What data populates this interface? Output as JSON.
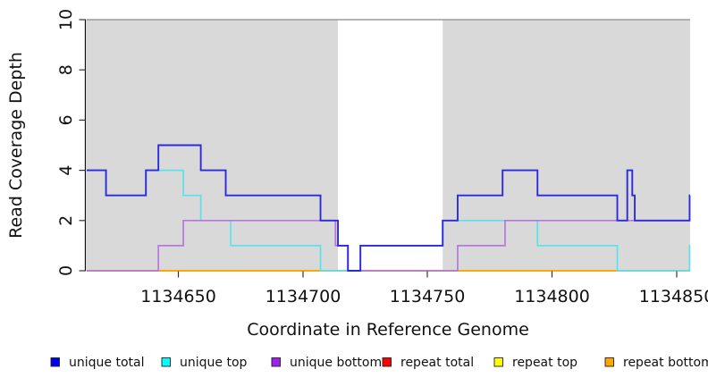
{
  "figure": {
    "background": "#FFFFFF",
    "description": "Step plot of read coverage depth across a reference genome window"
  },
  "chart_data": {
    "type": "line",
    "subtype": "step",
    "title": "",
    "xlabel": "Coordinate in Reference Genome",
    "ylabel": "Read Coverage Depth",
    "xlim": [
      1134613,
      1134856
    ],
    "ylim": [
      0,
      10
    ],
    "grid": false,
    "legend_position": "bottom",
    "plot_background": "#FFFFFF",
    "x_ticks": [
      1134650,
      1134700,
      1134750,
      1134800,
      1134850
    ],
    "x_tick_labels": [
      "1134650",
      "1134700",
      "1134750",
      "1134800",
      "1134850"
    ],
    "y_ticks": [
      0,
      2,
      4,
      6,
      8,
      10
    ],
    "y_tick_labels": [
      "0",
      "2",
      "4",
      "6",
      "8",
      "10"
    ],
    "shaded_regions": [
      {
        "from": 1134613,
        "to": 1134714,
        "color": "#D9D9D9"
      },
      {
        "from": 1134756,
        "to": 1134856,
        "color": "#D9D9D9"
      }
    ],
    "unshaded_gap": {
      "from": 1134714,
      "to": 1134756
    },
    "region_border_color": "#9B9B9B",
    "draw_order": [
      3,
      4,
      5,
      1,
      2,
      0
    ],
    "series": [
      {
        "name": "unique total",
        "swatch": "#0000EE",
        "line": "#2B2BDB",
        "steps": [
          [
            1134613,
            4
          ],
          [
            1134621,
            3
          ],
          [
            1134637,
            4
          ],
          [
            1134642,
            5
          ],
          [
            1134659,
            4
          ],
          [
            1134669,
            3
          ],
          [
            1134707,
            2
          ],
          [
            1134714,
            1
          ],
          [
            1134718,
            0
          ],
          [
            1134723,
            1
          ],
          [
            1134756,
            2
          ],
          [
            1134762,
            3
          ],
          [
            1134780,
            4
          ],
          [
            1134794,
            3
          ],
          [
            1134826,
            2
          ],
          [
            1134830,
            4
          ],
          [
            1134832,
            3
          ],
          [
            1134833,
            2
          ],
          [
            1134855,
            3
          ]
        ]
      },
      {
        "name": "unique top",
        "swatch": "#00FFFF",
        "line": "#5CE1EA",
        "steps": [
          [
            1134613,
            4
          ],
          [
            1134621,
            3
          ],
          [
            1134637,
            4
          ],
          [
            1134652,
            3
          ],
          [
            1134659,
            2
          ],
          [
            1134671,
            1
          ],
          [
            1134707,
            0
          ],
          [
            1134723,
            1
          ],
          [
            1134756,
            2
          ],
          [
            1134794,
            1
          ],
          [
            1134826,
            0
          ],
          [
            1134855,
            1
          ]
        ]
      },
      {
        "name": "unique bottom",
        "swatch": "#A020F0",
        "line": "#B678DC",
        "steps": [
          [
            1134613,
            0
          ],
          [
            1134642,
            1
          ],
          [
            1134652,
            2
          ],
          [
            1134713,
            1
          ],
          [
            1134718,
            0
          ],
          [
            1134762,
            1
          ],
          [
            1134781,
            2
          ]
        ]
      },
      {
        "name": "repeat total",
        "swatch": "#FF0000",
        "line": "#DD2222",
        "steps": [
          [
            1134613,
            0
          ]
        ]
      },
      {
        "name": "repeat top",
        "swatch": "#FFFF00",
        "line": "#F5E600",
        "steps": [
          [
            1134613,
            0
          ]
        ]
      },
      {
        "name": "repeat bottom",
        "swatch": "#FFA500",
        "line": "#FFA500",
        "steps": [
          [
            1134613,
            0
          ]
        ]
      }
    ]
  }
}
